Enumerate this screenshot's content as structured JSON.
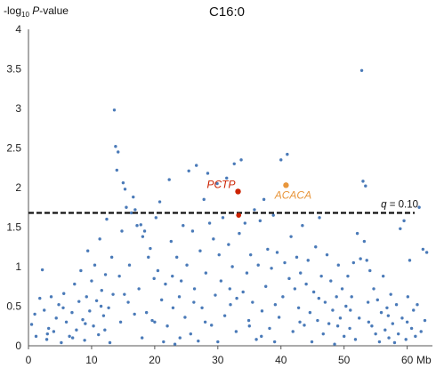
{
  "chart_data": {
    "type": "scatter",
    "title": "C16:0",
    "ylabel": {
      "prefix": "-log",
      "sub": "10",
      "italic": " P",
      "suffix": "-value"
    },
    "xlabel_unit": "Mb",
    "xlim": [
      0,
      64
    ],
    "ylim": [
      0,
      4
    ],
    "xticks": [
      0,
      10,
      20,
      30,
      40,
      50,
      60
    ],
    "yticks": [
      "0",
      "0.5",
      "1",
      "1.5",
      "2",
      "2.5",
      "3",
      "3.5",
      "4"
    ],
    "threshold": {
      "value": 1.68,
      "label_var": "q",
      "label_rest": " = 0.10"
    },
    "colors": {
      "points": "#4a7ab8",
      "pctp": "#cc2200",
      "acaca": "#e8963c",
      "threshold": "#111111"
    },
    "highlights": [
      {
        "label": "PCTP",
        "x": 33.2,
        "y": 1.95,
        "color": "#cc2200"
      },
      {
        "label": "",
        "x": 33.3,
        "y": 1.65,
        "color": "#cc2200"
      },
      {
        "label": "ACACA",
        "x": 40.8,
        "y": 2.03,
        "color": "#e8963c"
      }
    ],
    "points": [
      [
        0.5,
        0.27
      ],
      [
        1.2,
        0.12
      ],
      [
        1.8,
        0.6
      ],
      [
        2.2,
        0.96
      ],
      [
        2.5,
        0.45
      ],
      [
        2.9,
        0.08
      ],
      [
        3.2,
        0.22
      ],
      [
        3.6,
        0.62
      ],
      [
        4.0,
        0.18
      ],
      [
        4.4,
        0.35
      ],
      [
        4.8,
        0.52
      ],
      [
        5.2,
        0.04
      ],
      [
        5.6,
        0.66
      ],
      [
        6.0,
        0.3
      ],
      [
        6.5,
        0.12
      ],
      [
        6.9,
        0.42
      ],
      [
        7.3,
        0.78
      ],
      [
        7.6,
        0.2
      ],
      [
        8.0,
        0.56
      ],
      [
        8.3,
        0.95
      ],
      [
        8.6,
        0.33
      ],
      [
        8.9,
        0.07
      ],
      [
        9.2,
        0.62
      ],
      [
        9.4,
        1.2
      ],
      [
        9.7,
        0.44
      ],
      [
        10.0,
        0.82
      ],
      [
        10.3,
        0.25
      ],
      [
        10.5,
        1.02
      ],
      [
        10.8,
        0.57
      ],
      [
        11.1,
        0.14
      ],
      [
        11.3,
        1.35
      ],
      [
        11.6,
        0.7
      ],
      [
        11.9,
        0.38
      ],
      [
        12.2,
        0.9
      ],
      [
        12.4,
        1.6
      ],
      [
        12.7,
        0.48
      ],
      [
        12.9,
        0.04
      ],
      [
        13.2,
        1.12
      ],
      [
        13.4,
        0.65
      ],
      [
        13.6,
        2.98
      ],
      [
        13.8,
        2.52
      ],
      [
        14.0,
        2.22
      ],
      [
        14.2,
        2.45
      ],
      [
        14.4,
        0.88
      ],
      [
        14.6,
        0.3
      ],
      [
        14.8,
        1.45
      ],
      [
        15.0,
        2.06
      ],
      [
        15.3,
        1.98
      ],
      [
        15.5,
        1.75
      ],
      [
        15.8,
        0.55
      ],
      [
        16.0,
        1.02
      ],
      [
        16.3,
        1.68
      ],
      [
        16.6,
        1.88
      ],
      [
        16.9,
        1.72
      ],
      [
        17.2,
        1.52
      ],
      [
        17.5,
        0.72
      ],
      [
        17.8,
        1.53
      ],
      [
        18.1,
        1.38
      ],
      [
        18.4,
        1.45
      ],
      [
        18.7,
        0.42
      ],
      [
        19.0,
        1.12
      ],
      [
        19.3,
        1.23
      ],
      [
        19.6,
        0.32
      ],
      [
        19.9,
        0.85
      ],
      [
        20.2,
        1.62
      ],
      [
        20.5,
        0.95
      ],
      [
        20.8,
        1.82
      ],
      [
        21.1,
        0.58
      ],
      [
        21.4,
        0.05
      ],
      [
        21.7,
        0.78
      ],
      [
        22.0,
        0.25
      ],
      [
        22.3,
        2.1
      ],
      [
        22.6,
        1.32
      ],
      [
        22.9,
        0.48
      ],
      [
        23.2,
        0.02
      ],
      [
        23.5,
        1.12
      ],
      [
        23.9,
        0.62
      ],
      [
        24.2,
        0.82
      ],
      [
        24.5,
        1.52
      ],
      [
        24.8,
        0.36
      ],
      [
        25.1,
        1.02
      ],
      [
        25.4,
        2.21
      ],
      [
        25.7,
        0.15
      ],
      [
        26.0,
        1.45
      ],
      [
        26.3,
        0.72
      ],
      [
        26.6,
        2.28
      ],
      [
        26.9,
        0.06
      ],
      [
        27.2,
        1.2
      ],
      [
        27.5,
        0.48
      ],
      [
        27.8,
        1.85
      ],
      [
        28.1,
        0.92
      ],
      [
        28.4,
        2.18
      ],
      [
        28.7,
        1.55
      ],
      [
        29.0,
        0.26
      ],
      [
        29.3,
        1.35
      ],
      [
        29.6,
        0.64
      ],
      [
        29.9,
        2.05
      ],
      [
        30.2,
        1.15
      ],
      [
        30.5,
        0.82
      ],
      [
        30.8,
        1.62
      ],
      [
        31.1,
        0.38
      ],
      [
        31.4,
        2.12
      ],
      [
        31.7,
        1.28
      ],
      [
        32.0,
        0.52
      ],
      [
        32.3,
        1.0
      ],
      [
        32.6,
        2.3
      ],
      [
        32.9,
        0.18
      ],
      [
        33.4,
        1.42
      ],
      [
        33.7,
        2.35
      ],
      [
        34.0,
        0.68
      ],
      [
        34.3,
        1.55
      ],
      [
        34.6,
        0.92
      ],
      [
        34.9,
        0.32
      ],
      [
        35.2,
        1.15
      ],
      [
        35.5,
        0.55
      ],
      [
        35.8,
        1.72
      ],
      [
        36.1,
        0.08
      ],
      [
        36.4,
        1.02
      ],
      [
        36.7,
        1.58
      ],
      [
        37.0,
        0.44
      ],
      [
        37.3,
        1.85
      ],
      [
        37.6,
        0.75
      ],
      [
        37.9,
        1.22
      ],
      [
        38.2,
        0.22
      ],
      [
        38.5,
        0.98
      ],
      [
        38.8,
        1.65
      ],
      [
        39.1,
        0.52
      ],
      [
        39.4,
        1.18
      ],
      [
        39.7,
        0.36
      ],
      [
        40.0,
        2.35
      ],
      [
        40.3,
        0.62
      ],
      [
        40.6,
        1.05
      ],
      [
        41.0,
        2.42
      ],
      [
        41.3,
        0.85
      ],
      [
        41.6,
        1.38
      ],
      [
        41.9,
        0.18
      ],
      [
        42.2,
        0.72
      ],
      [
        42.5,
        1.12
      ],
      [
        42.8,
        0.48
      ],
      [
        43.1,
        0.92
      ],
      [
        43.4,
        1.52
      ],
      [
        43.7,
        0.26
      ],
      [
        44.0,
        0.78
      ],
      [
        44.3,
        1.08
      ],
      [
        44.6,
        0.42
      ],
      [
        44.9,
        0.05
      ],
      [
        45.2,
        0.68
      ],
      [
        45.5,
        1.25
      ],
      [
        45.8,
        0.32
      ],
      [
        46.1,
        1.62
      ],
      [
        46.4,
        0.88
      ],
      [
        46.7,
        0.15
      ],
      [
        47.0,
        0.55
      ],
      [
        47.3,
        1.15
      ],
      [
        47.6,
        0.28
      ],
      [
        47.9,
        0.82
      ],
      [
        48.2,
        0.45
      ],
      [
        48.5,
        0.02
      ],
      [
        48.8,
        0.62
      ],
      [
        49.1,
        1.02
      ],
      [
        49.4,
        0.35
      ],
      [
        49.7,
        0.72
      ],
      [
        50.0,
        0.12
      ],
      [
        50.3,
        0.5
      ],
      [
        50.6,
        0.88
      ],
      [
        50.9,
        0.22
      ],
      [
        51.2,
        0.62
      ],
      [
        51.5,
        1.05
      ],
      [
        51.8,
        0.08
      ],
      [
        52.1,
        1.42
      ],
      [
        52.4,
        0.35
      ],
      [
        52.6,
        1.1
      ],
      [
        52.8,
        3.48
      ],
      [
        53.0,
        2.08
      ],
      [
        53.2,
        1.32
      ],
      [
        53.4,
        2.02
      ],
      [
        53.6,
        1.08
      ],
      [
        53.8,
        0.55
      ],
      [
        54.1,
        0.95
      ],
      [
        54.4,
        0.25
      ],
      [
        54.7,
        0.72
      ],
      [
        55.0,
        0.15
      ],
      [
        55.3,
        0.58
      ],
      [
        55.6,
        0.05
      ],
      [
        55.9,
        0.42
      ],
      [
        56.2,
        0.88
      ],
      [
        56.5,
        0.2
      ],
      [
        56.8,
        0.48
      ],
      [
        57.1,
        0.1
      ],
      [
        57.4,
        0.65
      ],
      [
        57.7,
        0.28
      ],
      [
        58.0,
        0.04
      ],
      [
        58.3,
        0.52
      ],
      [
        58.6,
        0.15
      ],
      [
        58.9,
        1.48
      ],
      [
        59.2,
        0.35
      ],
      [
        59.5,
        1.58
      ],
      [
        59.8,
        0.08
      ],
      [
        60.1,
        0.62
      ],
      [
        60.4,
        1.08
      ],
      [
        60.7,
        0.22
      ],
      [
        61.0,
        0.45
      ],
      [
        61.3,
        0.12
      ],
      [
        61.6,
        0.52
      ],
      [
        61.9,
        1.75
      ],
      [
        62.2,
        0.18
      ],
      [
        62.5,
        1.22
      ],
      [
        62.8,
        0.32
      ],
      [
        63.1,
        1.18
      ],
      [
        1.0,
        0.4
      ],
      [
        3.0,
        0.15
      ],
      [
        5.5,
        0.48
      ],
      [
        7.0,
        0.1
      ],
      [
        9.0,
        0.28
      ],
      [
        11.5,
        0.5
      ],
      [
        12.1,
        0.2
      ],
      [
        15.2,
        0.65
      ],
      [
        16.8,
        0.4
      ],
      [
        18.0,
        0.1
      ],
      [
        20.0,
        0.3
      ],
      [
        22.8,
        0.88
      ],
      [
        24.0,
        0.1
      ],
      [
        26.2,
        0.55
      ],
      [
        28.0,
        0.3
      ],
      [
        30.0,
        0.05
      ],
      [
        31.9,
        0.72
      ],
      [
        33.0,
        0.6
      ],
      [
        35.0,
        0.25
      ],
      [
        36.9,
        0.12
      ],
      [
        39.0,
        0.05
      ],
      [
        43.0,
        0.3
      ],
      [
        46.0,
        0.6
      ],
      [
        49.0,
        0.25
      ],
      [
        51.0,
        0.45
      ],
      [
        53.9,
        0.3
      ],
      [
        57.0,
        0.38
      ],
      [
        60.0,
        0.3
      ]
    ]
  }
}
